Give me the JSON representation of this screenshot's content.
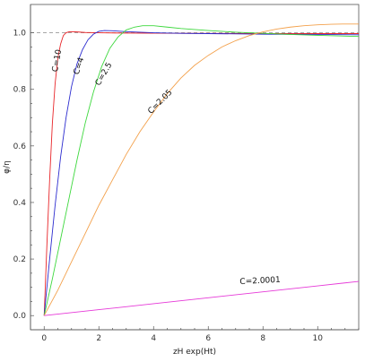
{
  "chart_data": {
    "type": "line",
    "title": "",
    "xlabel": "zH exp(Ht)",
    "ylabel": "φ/η",
    "xlim": [
      -0.5,
      11.5
    ],
    "ylim": [
      -0.05,
      1.1
    ],
    "x_ticks": [
      0,
      2,
      4,
      6,
      8,
      10
    ],
    "y_ticks": [
      0.0,
      0.2,
      0.4,
      0.6,
      0.8,
      1.0
    ],
    "x_tick_labels": [
      "0",
      "2",
      "4",
      "6",
      "8",
      "10"
    ],
    "y_tick_labels": [
      "0.0",
      "0.2",
      "0.4",
      "0.6",
      "0.8",
      "1.0"
    ],
    "grid": false,
    "reference_line": {
      "y": 1.0,
      "style": "dashed",
      "color": "#9a9a9a"
    },
    "series": [
      {
        "name": "C=10",
        "color": "#e8262a",
        "x": [
          0,
          0.1,
          0.2,
          0.3,
          0.4,
          0.5,
          0.6,
          0.7,
          0.8,
          0.9,
          1.0,
          1.2,
          1.5,
          2,
          3,
          5,
          8,
          11.5
        ],
        "y": [
          0,
          0.25,
          0.48,
          0.68,
          0.82,
          0.91,
          0.96,
          0.99,
          1.0,
          1.003,
          1.004,
          1.003,
          1.001,
          1.0,
          0.999,
          0.998,
          0.997,
          0.997
        ]
      },
      {
        "name": "C=4",
        "color": "#2c2ccf",
        "x": [
          0,
          0.2,
          0.4,
          0.6,
          0.8,
          1.0,
          1.2,
          1.4,
          1.6,
          1.8,
          2.0,
          2.2,
          2.5,
          3,
          4,
          5,
          6,
          8,
          10,
          11.5
        ],
        "y": [
          0,
          0.2,
          0.39,
          0.56,
          0.7,
          0.81,
          0.89,
          0.94,
          0.975,
          0.995,
          1.005,
          1.008,
          1.007,
          1.004,
          1.0,
          0.998,
          0.997,
          0.995,
          0.994,
          0.993
        ]
      },
      {
        "name": "C=2.5",
        "color": "#3dd83d",
        "x": [
          0,
          0.3,
          0.6,
          0.9,
          1.2,
          1.5,
          1.8,
          2.1,
          2.4,
          2.7,
          3.0,
          3.3,
          3.6,
          4.0,
          4.5,
          5,
          6,
          7,
          8,
          9,
          10,
          11.5
        ],
        "y": [
          0,
          0.13,
          0.27,
          0.41,
          0.55,
          0.68,
          0.79,
          0.88,
          0.945,
          0.985,
          1.01,
          1.02,
          1.025,
          1.025,
          1.02,
          1.015,
          1.008,
          1.002,
          0.998,
          0.994,
          0.991,
          0.987
        ]
      },
      {
        "name": "C=2.05",
        "color": "#f3a14c",
        "x": [
          0,
          0.5,
          1,
          1.5,
          2,
          2.5,
          3,
          3.5,
          4,
          4.5,
          5,
          5.5,
          6,
          6.5,
          7,
          7.5,
          8,
          8.5,
          9,
          9.5,
          10,
          10.5,
          11,
          11.5
        ],
        "y": [
          0,
          0.09,
          0.19,
          0.29,
          0.39,
          0.48,
          0.57,
          0.65,
          0.72,
          0.785,
          0.84,
          0.885,
          0.92,
          0.95,
          0.972,
          0.99,
          1.003,
          1.013,
          1.02,
          1.025,
          1.028,
          1.03,
          1.031,
          1.031
        ]
      },
      {
        "name": "C=2.0001",
        "color": "#e63ad8",
        "x": [
          0,
          2,
          4,
          6,
          8,
          10,
          11.5
        ],
        "y": [
          0,
          0.021,
          0.042,
          0.063,
          0.084,
          0.105,
          0.121
        ]
      }
    ],
    "annotations": [
      {
        "text": "C=10",
        "series": "C=10",
        "x": 0.55,
        "y": 0.9,
        "rotation": -80
      },
      {
        "text": "C=4",
        "series": "C=4",
        "x": 1.35,
        "y": 0.88,
        "rotation": -72
      },
      {
        "text": "C=2.5",
        "series": "C=2.5",
        "x": 2.25,
        "y": 0.85,
        "rotation": -60
      },
      {
        "text": "C=2.05",
        "series": "C=2.05",
        "x": 4.3,
        "y": 0.75,
        "rotation": -45
      },
      {
        "text": "C=2.0001",
        "series": "C=2.0001",
        "x": 7.9,
        "y": 0.115,
        "rotation": -3
      }
    ]
  }
}
